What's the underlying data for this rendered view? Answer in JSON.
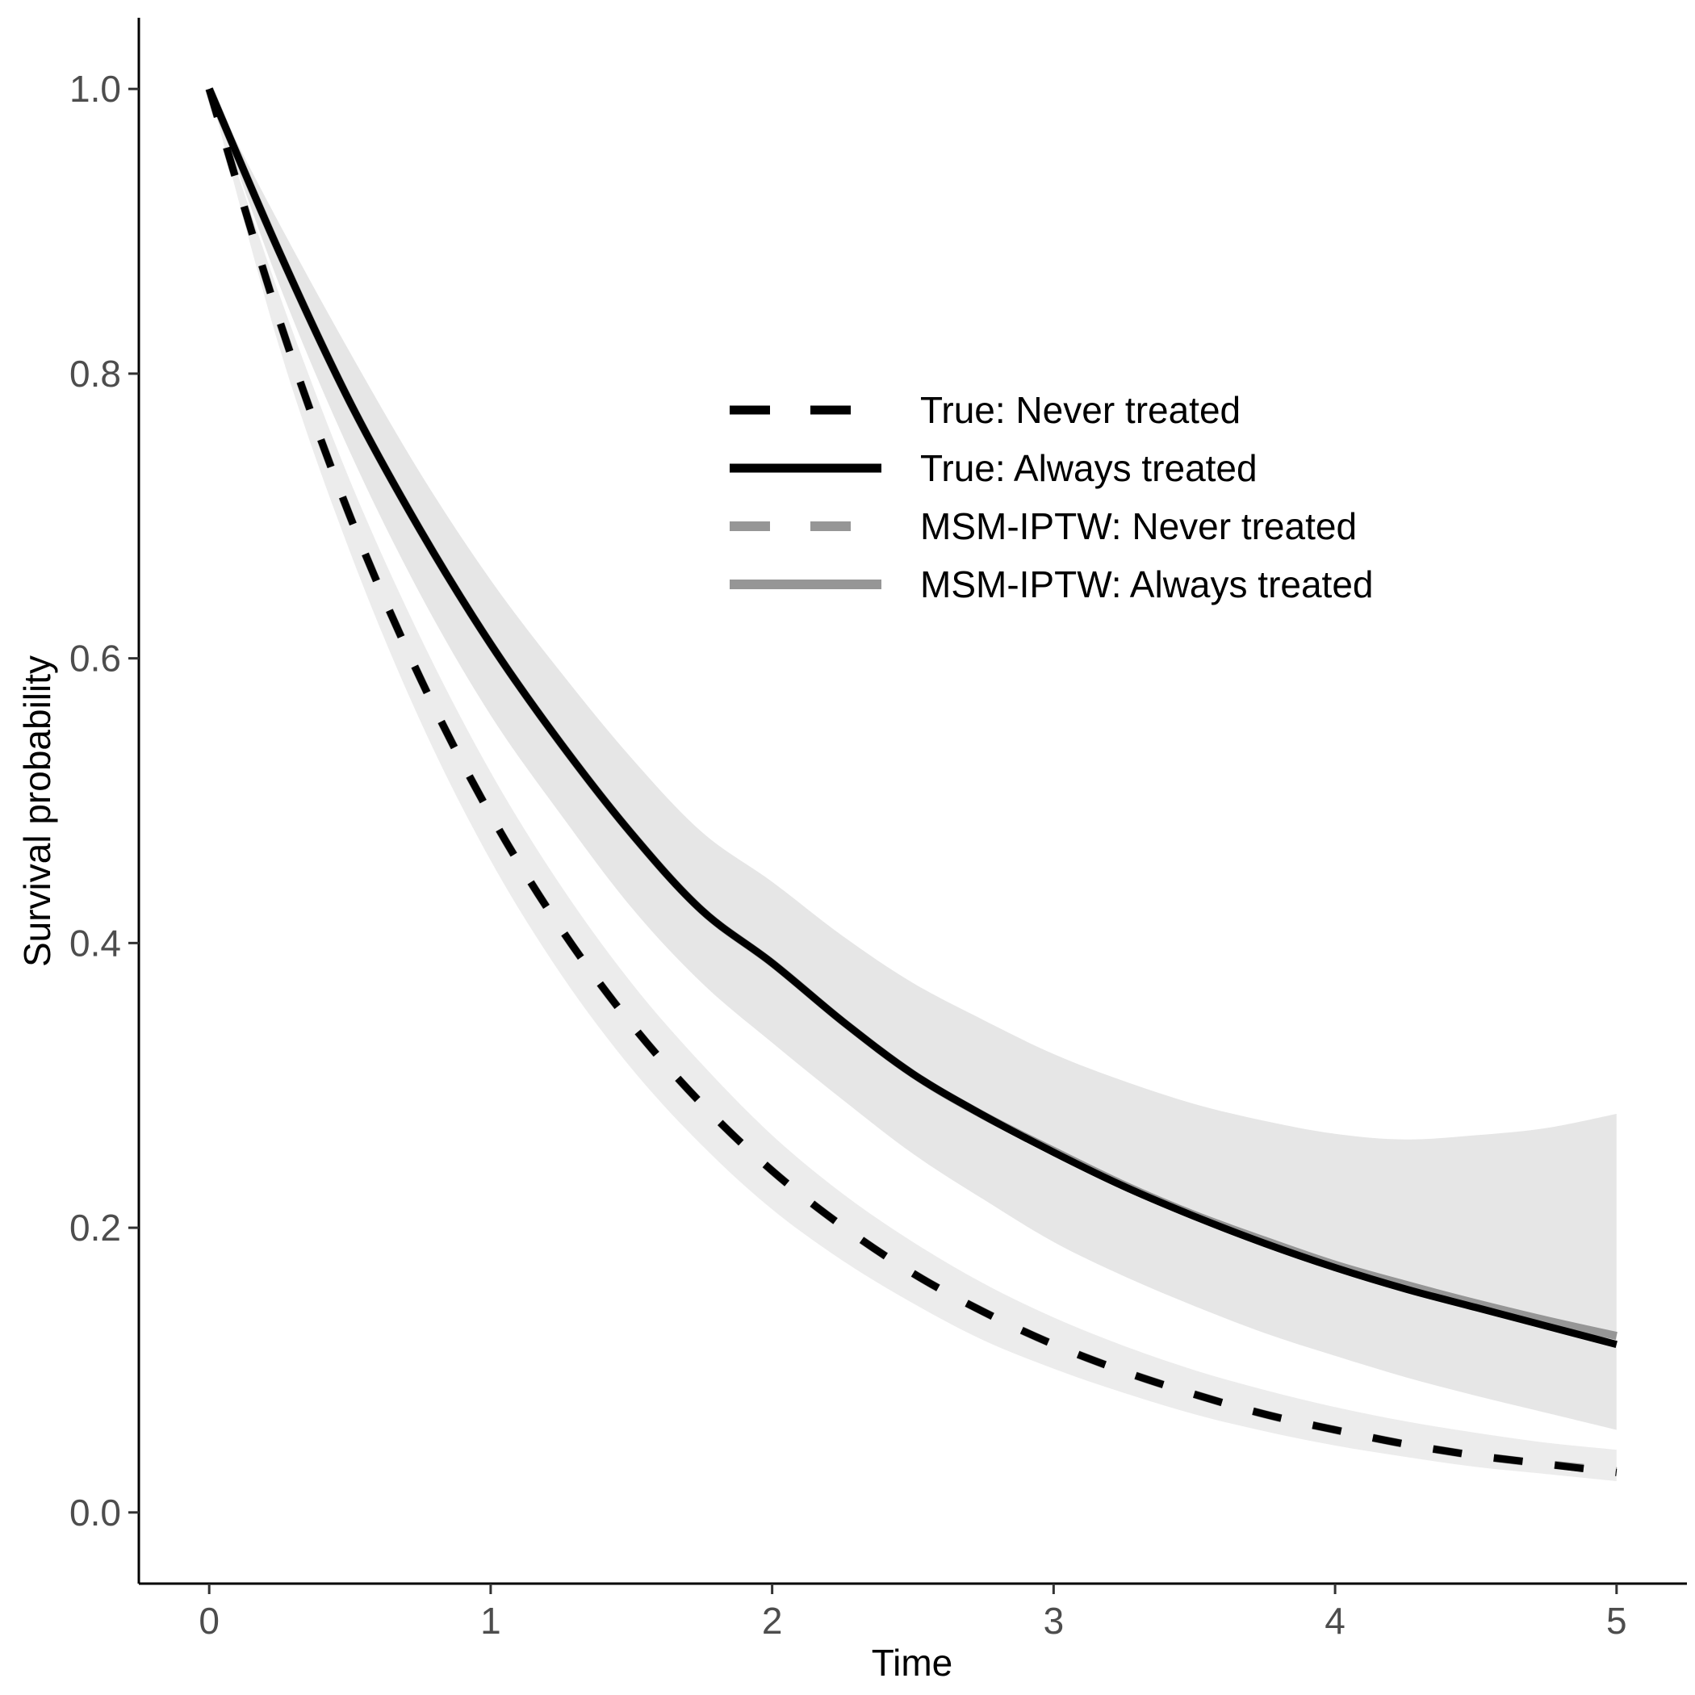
{
  "chart_data": {
    "type": "line",
    "title": "",
    "xlabel": "Time",
    "ylabel": "Survival probability",
    "xlim": [
      -0.25,
      5.25
    ],
    "ylim": [
      -0.05,
      1.05
    ],
    "x_ticks": [
      0,
      1,
      2,
      3,
      4,
      5
    ],
    "x_tick_labels": [
      "0",
      "1",
      "2",
      "3",
      "4",
      "5"
    ],
    "y_ticks": [
      0.0,
      0.2,
      0.4,
      0.6,
      0.8,
      1.0
    ],
    "y_tick_labels": [
      "0.0",
      "0.2",
      "0.4",
      "0.6",
      "0.8",
      "1.0"
    ],
    "grid": false,
    "legend_position": "top-right",
    "x": [
      0,
      0.25,
      0.5,
      0.75,
      1,
      1.25,
      1.5,
      1.75,
      2,
      2.25,
      2.5,
      2.75,
      3,
      3.25,
      3.5,
      3.75,
      4,
      4.25,
      4.5,
      4.75,
      5
    ],
    "series": [
      {
        "name": "True: Never treated",
        "color": "#000000",
        "dash": "long-dash",
        "values": [
          1.0,
          0.837,
          0.7,
          0.586,
          0.49,
          0.41,
          0.343,
          0.287,
          0.24,
          0.201,
          0.168,
          0.141,
          0.118,
          0.099,
          0.083,
          0.069,
          0.058,
          0.048,
          0.04,
          0.034,
          0.028
        ]
      },
      {
        "name": "True: Always treated",
        "color": "#000000",
        "dash": "solid",
        "values": [
          1.0,
          0.885,
          0.78,
          0.69,
          0.61,
          0.54,
          0.477,
          0.423,
          0.386,
          0.345,
          0.308,
          0.279,
          0.253,
          0.229,
          0.208,
          0.189,
          0.172,
          0.157,
          0.144,
          0.131,
          0.118
        ]
      },
      {
        "name": "MSM-IPTW: Never treated",
        "color": "#969696",
        "dash": "long-dash",
        "values": [
          1.0,
          0.837,
          0.7,
          0.586,
          0.49,
          0.41,
          0.343,
          0.287,
          0.24,
          0.201,
          0.168,
          0.141,
          0.118,
          0.099,
          0.083,
          0.069,
          0.058,
          0.048,
          0.04,
          0.034,
          0.029
        ]
      },
      {
        "name": "MSM-IPTW: Always treated",
        "color": "#969696",
        "dash": "solid",
        "values": [
          1.0,
          0.885,
          0.78,
          0.69,
          0.61,
          0.54,
          0.477,
          0.423,
          0.386,
          0.345,
          0.308,
          0.279,
          0.254,
          0.23,
          0.209,
          0.191,
          0.174,
          0.16,
          0.147,
          0.135,
          0.124
        ]
      }
    ],
    "background_bands": [
      {
        "color": "#e6e6e6",
        "upper": [
          1.0,
          0.905,
          0.815,
          0.73,
          0.655,
          0.59,
          0.53,
          0.478,
          0.443,
          0.405,
          0.372,
          0.346,
          0.322,
          0.303,
          0.287,
          0.275,
          0.266,
          0.262,
          0.265,
          0.27,
          0.28
        ],
        "lower": [
          1.0,
          0.862,
          0.745,
          0.645,
          0.56,
          0.49,
          0.425,
          0.372,
          0.33,
          0.29,
          0.252,
          0.22,
          0.19,
          0.166,
          0.145,
          0.126,
          0.11,
          0.095,
          0.082,
          0.07,
          0.058
        ]
      },
      {
        "color": "#ececec",
        "upper": [
          1.0,
          0.855,
          0.725,
          0.615,
          0.52,
          0.44,
          0.372,
          0.315,
          0.265,
          0.224,
          0.19,
          0.161,
          0.137,
          0.117,
          0.1,
          0.086,
          0.074,
          0.064,
          0.056,
          0.049,
          0.044
        ],
        "lower": [
          1.0,
          0.818,
          0.675,
          0.556,
          0.458,
          0.378,
          0.312,
          0.258,
          0.213,
          0.177,
          0.147,
          0.121,
          0.101,
          0.084,
          0.069,
          0.057,
          0.047,
          0.039,
          0.032,
          0.027,
          0.022
        ]
      }
    ]
  }
}
